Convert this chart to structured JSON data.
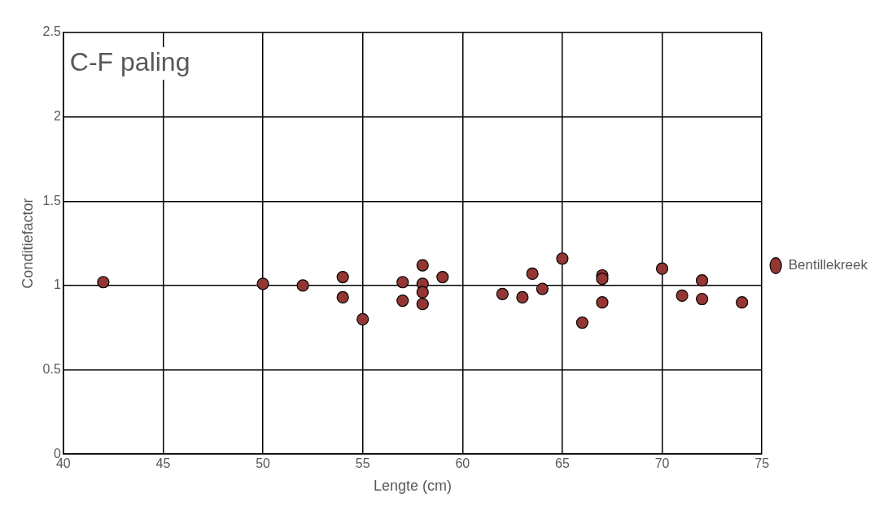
{
  "chart_data": {
    "type": "scatter",
    "title": "C-F paling",
    "xlabel": "Lengte (cm)",
    "ylabel": "Conditiefactor",
    "xlim": [
      40,
      75
    ],
    "xticks": [
      40,
      45,
      50,
      55,
      60,
      65,
      70,
      75
    ],
    "ylim": [
      0,
      2.5
    ],
    "yticks": [
      0,
      0.5,
      1,
      1.5,
      2,
      2.5
    ],
    "grid": true,
    "legend": "right",
    "marker": "circle",
    "series": [
      {
        "name": "Bentillekreek",
        "color": "#943634",
        "x": [
          42,
          50,
          52,
          54,
          54,
          55,
          57,
          57,
          58,
          58,
          58,
          58,
          59,
          62,
          63,
          63.5,
          64,
          65,
          66,
          67,
          67,
          67,
          70,
          71,
          72,
          72,
          74
        ],
        "values": [
          1.02,
          1.01,
          1.0,
          1.05,
          0.93,
          0.8,
          1.02,
          0.91,
          1.12,
          1.01,
          0.96,
          0.89,
          1.05,
          0.95,
          0.93,
          1.07,
          0.98,
          1.16,
          0.78,
          1.06,
          1.04,
          0.9,
          1.1,
          0.94,
          1.03,
          0.92,
          0.9
        ]
      }
    ]
  }
}
